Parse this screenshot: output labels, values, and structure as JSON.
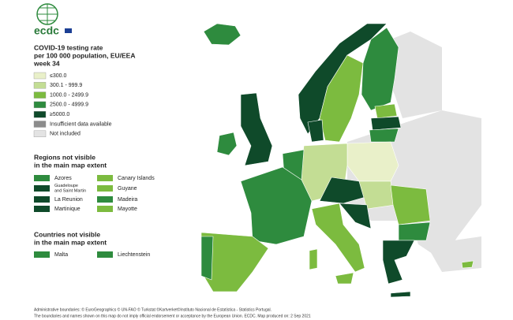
{
  "logo": "ecdc",
  "title": [
    "COVID-19 testing rate",
    "per 100 000 population, EU/EEA",
    "week 34"
  ],
  "legend": [
    {
      "label": "≤300.0",
      "color": "#e9f0c9"
    },
    {
      "label": "300.1 - 999.9",
      "color": "#c3dd94"
    },
    {
      "label": "1000.0 - 2499.9",
      "color": "#7cbb3f"
    },
    {
      "label": "2500.0 - 4999.9",
      "color": "#2e8b3e"
    },
    {
      "label": "≥5000.0",
      "color": "#0f4a2a"
    },
    {
      "label": "Insufficient data available",
      "color": "#8c8c8c"
    },
    {
      "label": "Not included",
      "color": "#e3e3e3"
    }
  ],
  "regions_heading": [
    "Regions not visible",
    "in the main map extent"
  ],
  "regions": [
    [
      {
        "label": [
          "Azores"
        ],
        "color": "#2e8b3e"
      },
      {
        "label": [
          "Canary Islands"
        ],
        "color": "#7cbb3f"
      }
    ],
    [
      {
        "label": [
          "Guadeloupe",
          "and Saint Martin"
        ],
        "color": "#0f4a2a"
      },
      {
        "label": [
          "Guyane"
        ],
        "color": "#7cbb3f"
      }
    ],
    [
      {
        "label": [
          "La Reunion"
        ],
        "color": "#0f4a2a"
      },
      {
        "label": [
          "Madeira"
        ],
        "color": "#2e8b3e"
      }
    ],
    [
      {
        "label": [
          "Martinique"
        ],
        "color": "#0f4a2a"
      },
      {
        "label": [
          "Mayotte"
        ],
        "color": "#7cbb3f"
      }
    ]
  ],
  "countries_heading": [
    "Countries not visible",
    "in the main map extent"
  ],
  "countries": [
    {
      "label": "Malta",
      "color": "#2e8b3e"
    },
    {
      "label": "Liechtenstein",
      "color": "#2e8b3e"
    }
  ],
  "footer": [
    "Administrative boundaries: © EuroGeographics © UN-FAO © Turkstat ©Kartverket©Instituto Nacional de Estatística - Statistics Portugal.",
    "The boundaries and names shown on this map do not imply official endorsement or acceptance by the European Union. ECDC. Map produced on: 2 Sep 2021"
  ]
}
